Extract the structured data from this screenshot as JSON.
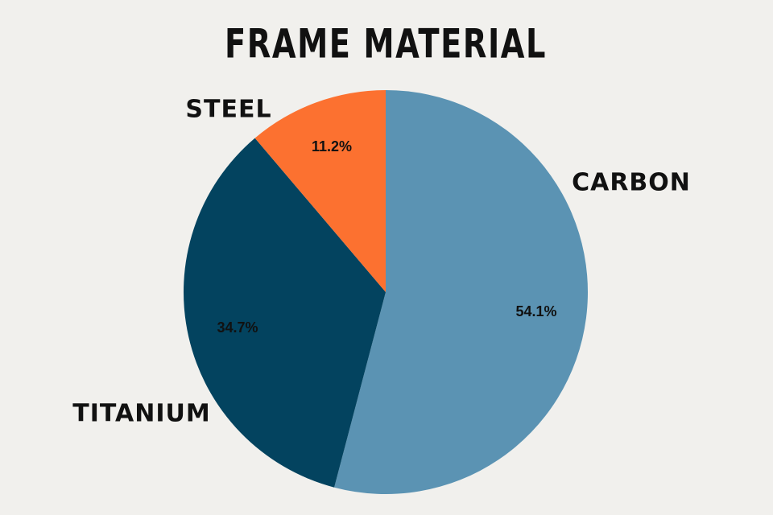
{
  "chart_data": {
    "type": "pie",
    "title": "FRAME MATERIAL",
    "categories": [
      "CARBON",
      "TITANIUM",
      "STEEL"
    ],
    "values": [
      54.1,
      34.7,
      11.2
    ],
    "value_labels": [
      "54.1%",
      "34.7%",
      "11.2%"
    ],
    "colors": [
      "#5b93b3",
      "#03435f",
      "#fc7130"
    ]
  }
}
